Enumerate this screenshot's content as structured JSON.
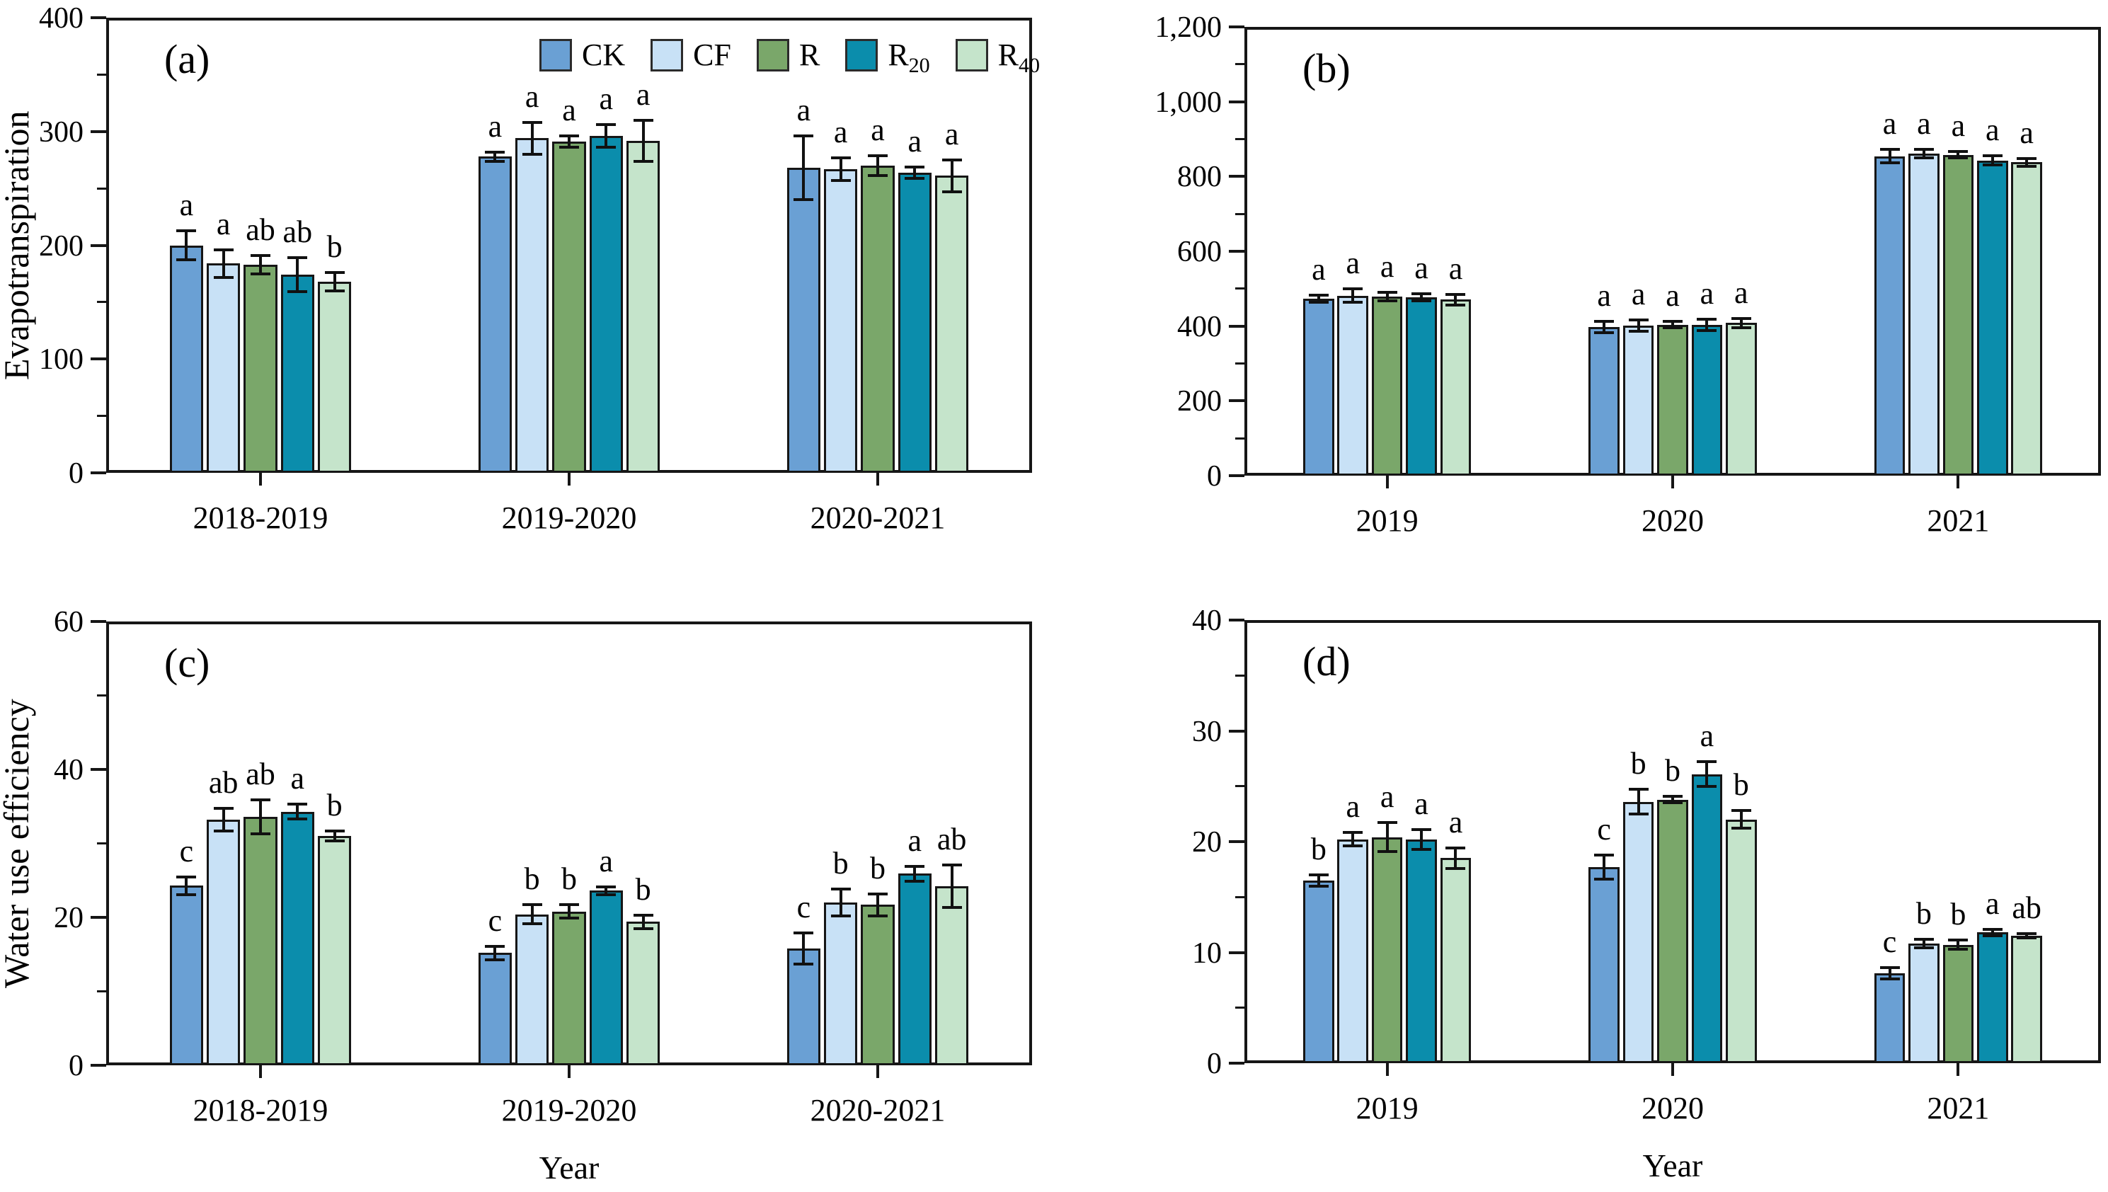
{
  "figure": {
    "background": "#ffffff",
    "bar_border_color": "#161616",
    "axis_color": "#161616",
    "colors": {
      "CK": "#6aa0d4",
      "CF": "#c8e1f6",
      "R": "#7aa76a",
      "R20": "#0b8dac",
      "R40": "#c5e4cb"
    },
    "legend": {
      "position": "top-center-of-panel-a",
      "items": [
        {
          "key": "CK",
          "label": "CK",
          "sub": ""
        },
        {
          "key": "CF",
          "label": "CF",
          "sub": ""
        },
        {
          "key": "R",
          "label": "R",
          "sub": ""
        },
        {
          "key": "R20",
          "label": "R",
          "sub": "20"
        },
        {
          "key": "R40",
          "label": "R",
          "sub": "40"
        }
      ]
    }
  },
  "chart_data": [
    {
      "id": "a",
      "type": "bar",
      "panel_label": "(a)",
      "ylabel": "Evapotranspiration",
      "xlabel": "",
      "ylim": [
        0,
        400
      ],
      "grid": false,
      "show_legend": true,
      "show_xlabel": false,
      "ytick_values": [
        0,
        100,
        200,
        300,
        400
      ],
      "ytick_labels": [
        "0",
        "100",
        "200",
        "300",
        "400"
      ],
      "minor_tick_values": [
        50,
        150,
        250,
        350
      ],
      "categories": [
        "2018-2019",
        "2019-2020",
        "2020-2021"
      ],
      "series": [
        {
          "name": "CK",
          "color_key": "CK",
          "values": [
            200,
            278,
            268
          ],
          "errors": [
            13,
            4,
            28
          ],
          "letters": [
            "a",
            "a",
            "a"
          ]
        },
        {
          "name": "CF",
          "color_key": "CF",
          "values": [
            184,
            294,
            267
          ],
          "errors": [
            12,
            14,
            10
          ],
          "letters": [
            "a",
            "a",
            "a"
          ]
        },
        {
          "name": "R",
          "color_key": "R",
          "values": [
            183,
            291,
            270
          ],
          "errors": [
            8,
            5,
            9
          ],
          "letters": [
            "ab",
            "a",
            "a"
          ]
        },
        {
          "name": "R20",
          "color_key": "R20",
          "values": [
            174,
            296,
            264
          ],
          "errors": [
            15,
            10,
            5
          ],
          "letters": [
            "ab",
            "a",
            "a"
          ]
        },
        {
          "name": "R40",
          "color_key": "R40",
          "values": [
            168,
            292,
            261
          ],
          "errors": [
            8,
            18,
            14
          ],
          "letters": [
            "b",
            "a",
            "a"
          ]
        }
      ]
    },
    {
      "id": "b",
      "type": "bar",
      "panel_label": "(b)",
      "ylabel": "",
      "xlabel": "",
      "ylim": [
        0,
        1200
      ],
      "grid": false,
      "show_legend": false,
      "show_xlabel": false,
      "ytick_values": [
        0,
        200,
        400,
        600,
        800,
        1000,
        1200
      ],
      "ytick_labels": [
        "0",
        "200",
        "400",
        "600",
        "800",
        "1,000",
        "1,200"
      ],
      "minor_tick_values": [
        100,
        300,
        500,
        700,
        900,
        1100
      ],
      "categories": [
        "2019",
        "2020",
        "2021"
      ],
      "series": [
        {
          "name": "CK",
          "color_key": "CK",
          "values": [
            473,
            398,
            854
          ],
          "errors": [
            10,
            15,
            18
          ],
          "letters": [
            "a",
            "a",
            "a"
          ]
        },
        {
          "name": "CF",
          "color_key": "CF",
          "values": [
            481,
            401,
            861
          ],
          "errors": [
            18,
            15,
            12
          ],
          "letters": [
            "a",
            "a",
            "a"
          ]
        },
        {
          "name": "R",
          "color_key": "R",
          "values": [
            479,
            404,
            858
          ],
          "errors": [
            12,
            8,
            8
          ],
          "letters": [
            "a",
            "a",
            "a"
          ]
        },
        {
          "name": "R20",
          "color_key": "R20",
          "values": [
            477,
            403,
            843
          ],
          "errors": [
            10,
            15,
            12
          ],
          "letters": [
            "a",
            "a",
            "a"
          ]
        },
        {
          "name": "R40",
          "color_key": "R40",
          "values": [
            471,
            408,
            838
          ],
          "errors": [
            14,
            12,
            10
          ],
          "letters": [
            "a",
            "a",
            "a"
          ]
        }
      ]
    },
    {
      "id": "c",
      "type": "bar",
      "panel_label": "(c)",
      "ylabel": "Water use efficiency",
      "xlabel": "Year",
      "ylim": [
        0,
        60
      ],
      "grid": false,
      "show_legend": false,
      "show_xlabel": true,
      "ytick_values": [
        0,
        20,
        40,
        60
      ],
      "ytick_labels": [
        "0",
        "20",
        "40",
        "60"
      ],
      "minor_tick_values": [
        10,
        30,
        50
      ],
      "categories": [
        "2018-2019",
        "2019-2020",
        "2020-2021"
      ],
      "series": [
        {
          "name": "CK",
          "color_key": "CK",
          "values": [
            24.3,
            15.2,
            15.8
          ],
          "errors": [
            1.2,
            0.9,
            2.1
          ],
          "letters": [
            "c",
            "c",
            "c"
          ]
        },
        {
          "name": "CF",
          "color_key": "CF",
          "values": [
            33.2,
            20.4,
            22.0
          ],
          "errors": [
            1.5,
            1.3,
            1.8
          ],
          "letters": [
            "ab",
            "b",
            "b"
          ]
        },
        {
          "name": "R",
          "color_key": "R",
          "values": [
            33.6,
            20.8,
            21.7
          ],
          "errors": [
            2.3,
            0.9,
            1.5
          ],
          "letters": [
            "ab",
            "b",
            "b"
          ]
        },
        {
          "name": "R20",
          "color_key": "R20",
          "values": [
            34.3,
            23.6,
            25.9
          ],
          "errors": [
            1.0,
            0.5,
            1.0
          ],
          "letters": [
            "a",
            "a",
            "a"
          ]
        },
        {
          "name": "R40",
          "color_key": "R40",
          "values": [
            31.0,
            19.4,
            24.2
          ],
          "errors": [
            0.7,
            0.9,
            2.9
          ],
          "letters": [
            "b",
            "b",
            "ab"
          ]
        }
      ]
    },
    {
      "id": "d",
      "type": "bar",
      "panel_label": "(d)",
      "ylabel": "",
      "xlabel": "Year",
      "ylim": [
        0,
        40
      ],
      "grid": false,
      "show_legend": false,
      "show_xlabel": true,
      "ytick_values": [
        0,
        10,
        20,
        30,
        40
      ],
      "ytick_labels": [
        "0",
        "10",
        "20",
        "30",
        "40"
      ],
      "minor_tick_values": [
        5,
        15,
        25,
        35
      ],
      "categories": [
        "2019",
        "2020",
        "2021"
      ],
      "series": [
        {
          "name": "CK",
          "color_key": "CK",
          "values": [
            16.5,
            17.7,
            8.1
          ],
          "errors": [
            0.5,
            1.1,
            0.5
          ],
          "letters": [
            "b",
            "c",
            "c"
          ]
        },
        {
          "name": "CF",
          "color_key": "CF",
          "values": [
            20.2,
            23.6,
            10.8
          ],
          "errors": [
            0.6,
            1.1,
            0.4
          ],
          "letters": [
            "a",
            "b",
            "b"
          ]
        },
        {
          "name": "R",
          "color_key": "R",
          "values": [
            20.4,
            23.8,
            10.7
          ],
          "errors": [
            1.3,
            0.3,
            0.4
          ],
          "letters": [
            "a",
            "b",
            "b"
          ]
        },
        {
          "name": "R20",
          "color_key": "R20",
          "values": [
            20.2,
            26.1,
            11.8
          ],
          "errors": [
            0.9,
            1.1,
            0.3
          ],
          "letters": [
            "a",
            "a",
            "a"
          ]
        },
        {
          "name": "R40",
          "color_key": "R40",
          "values": [
            18.5,
            22.0,
            11.5
          ],
          "errors": [
            0.9,
            0.8,
            0.2
          ],
          "letters": [
            "a",
            "b",
            "ab"
          ]
        }
      ]
    }
  ]
}
